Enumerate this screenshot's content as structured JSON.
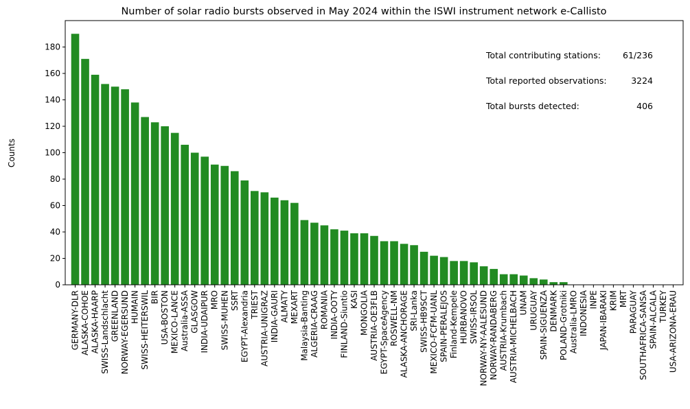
{
  "chart_data": {
    "type": "bar",
    "title": "Number of solar radio bursts observed in May 2024 within the ISWI instrument network e-Callisto",
    "xlabel": "",
    "ylabel": "Counts",
    "ylim": [
      0,
      200
    ],
    "yticks": [
      0,
      20,
      40,
      60,
      80,
      100,
      120,
      140,
      160,
      180
    ],
    "grid": false,
    "bar_color": "#228b22",
    "categories": [
      "GERMANY-DLR",
      "ALASKA-COHOE",
      "ALASKA-HAARP",
      "SWISS-Landschlacht",
      "GREENLAND",
      "NORWAY-EGERSUND",
      "HUMAIN",
      "SWISS-HEITERSWIL",
      "BIR",
      "USA-BOSTON",
      "MEXICO-LANCE",
      "Australia-ASSA",
      "GLASGOW",
      "INDIA-UDAIPUR",
      "MRO",
      "SWISS-MUHEN",
      "SSRT",
      "EGYPT-Alexandria",
      "TRIEST",
      "AUSTRIA-UNIGRAZ",
      "INDIA-GAURI",
      "ALMATY",
      "MEXART",
      "Malaysia-Banting",
      "ALGERIA-CRAAG",
      "ROMANIA",
      "INDIA-OOTY",
      "FINLAND-Siuntio",
      "KASI",
      "MONGOLIA",
      "AUSTRIA-OE3FLB",
      "EGYPT-SpaceAgency",
      "ROSWELL-NM",
      "ALASKA-ANCHORAGE",
      "SRI-Lanka",
      "SWISS-HB9SCT",
      "MEXICO-FCFM-UANL",
      "SPAIN-PERALEJOS",
      "Finland-Kempele",
      "HURBANOVO",
      "SWISS-IRSOL",
      "NORWAY-NY-AALESUND",
      "NORWAY-RANDABERG",
      "AUSTRIA-Krumbach",
      "AUSTRIA-MICHELBACH",
      "UNAM",
      "URUGUAY",
      "SPAIN-SIGUENZA",
      "DENMARK",
      "POLAND-Grotniki",
      "Australia-LMRO",
      "INDONESIA",
      "INPE",
      "JAPAN-IBARAKI",
      "KRIM",
      "MRT",
      "PARAGUAY",
      "SOUTHAFRICA-SANSA",
      "SPAIN-ALCALA",
      "TURKEY",
      "USA-ARIZONA-ERAU"
    ],
    "values": [
      190,
      171,
      159,
      152,
      150,
      148,
      138,
      127,
      123,
      120,
      115,
      106,
      100,
      97,
      91,
      90,
      86,
      79,
      71,
      70,
      66,
      64,
      62,
      49,
      47,
      45,
      42,
      41,
      39,
      39,
      37,
      33,
      33,
      31,
      30,
      25,
      22,
      21,
      18,
      18,
      17,
      14,
      12,
      8,
      8,
      7,
      5,
      4,
      2,
      2,
      0,
      0,
      0,
      0,
      0,
      0,
      0,
      0,
      0,
      0,
      0
    ],
    "annotations": [
      {
        "label": "Total contributing stations:",
        "value": "61/236"
      },
      {
        "label": "Total reported observations:",
        "value": "3224"
      },
      {
        "label": "Total bursts detected:",
        "value": "406"
      }
    ]
  }
}
